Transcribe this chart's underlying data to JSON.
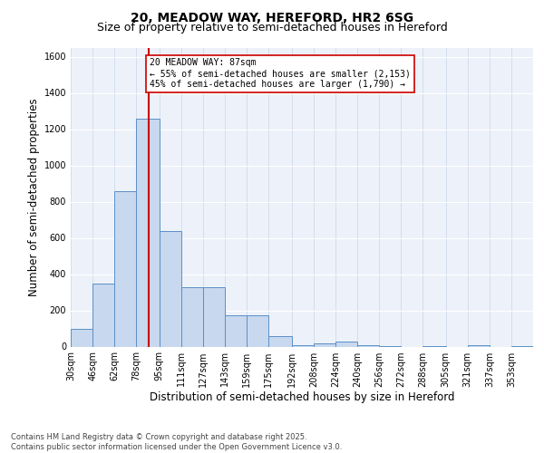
{
  "title_line1": "20, MEADOW WAY, HEREFORD, HR2 6SG",
  "title_line2": "Size of property relative to semi-detached houses in Hereford",
  "xlabel": "Distribution of semi-detached houses by size in Hereford",
  "ylabel": "Number of semi-detached properties",
  "bar_color": "#c8d8ee",
  "bar_edge_color": "#5b8fc7",
  "vline_color": "#cc0000",
  "vline_x": 87,
  "annotation_line1": "20 MEADOW WAY: 87sqm",
  "annotation_line2": "← 55% of semi-detached houses are smaller (2,153)",
  "annotation_line3": "45% of semi-detached houses are larger (1,790) →",
  "footer_line1": "Contains HM Land Registry data © Crown copyright and database right 2025.",
  "footer_line2": "Contains public sector information licensed under the Open Government Licence v3.0.",
  "bin_labels": [
    "30sqm",
    "46sqm",
    "62sqm",
    "78sqm",
    "95sqm",
    "111sqm",
    "127sqm",
    "143sqm",
    "159sqm",
    "175sqm",
    "192sqm",
    "208sqm",
    "224sqm",
    "240sqm",
    "256sqm",
    "272sqm",
    "288sqm",
    "305sqm",
    "321sqm",
    "337sqm",
    "353sqm"
  ],
  "bin_edges": [
    30,
    46,
    62,
    78,
    95,
    111,
    127,
    143,
    159,
    175,
    192,
    208,
    224,
    240,
    256,
    272,
    288,
    305,
    321,
    337,
    353
  ],
  "bar_heights": [
    100,
    350,
    860,
    1260,
    640,
    330,
    330,
    175,
    175,
    60,
    10,
    20,
    30,
    10,
    5,
    0,
    5,
    0,
    10,
    0,
    5
  ],
  "ylim": [
    0,
    1650
  ],
  "yticks": [
    0,
    200,
    400,
    600,
    800,
    1000,
    1200,
    1400,
    1600
  ],
  "background_color": "#edf2fa",
  "grid_color": "#c8d4e8",
  "title_fontsize": 10,
  "subtitle_fontsize": 9,
  "axis_label_fontsize": 8.5,
  "tick_fontsize": 7,
  "annotation_fontsize": 7,
  "footer_fontsize": 6
}
